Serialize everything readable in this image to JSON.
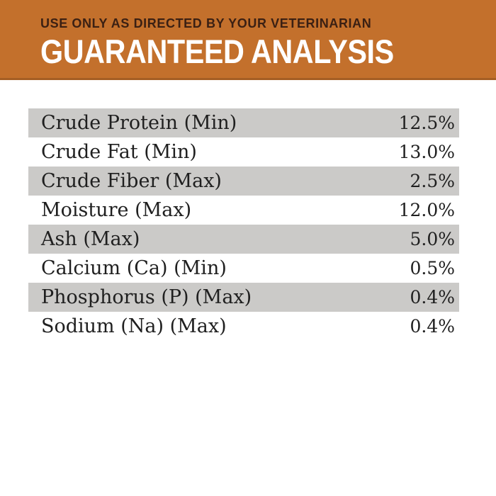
{
  "header": {
    "subtitle": "USE ONLY AS DIRECTED BY YOUR VETERINARIAN",
    "title": "GUARANTEED ANALYSIS",
    "background_color": "#C3702C",
    "subtitle_color": "#3B2013",
    "title_color": "#FFFFFF"
  },
  "table": {
    "stripe_color": "#CBCAC8",
    "text_color": "#1F1F1F",
    "rows": [
      {
        "label": "Crude Protein (Min)",
        "value": "12.5%"
      },
      {
        "label": "Crude Fat (Min)",
        "value": "13.0%"
      },
      {
        "label": "Crude Fiber (Max)",
        "value": "2.5%"
      },
      {
        "label": "Moisture (Max)",
        "value": "12.0%"
      },
      {
        "label": "Ash (Max)",
        "value": "5.0%"
      },
      {
        "label": "Calcium (Ca) (Min)",
        "value": "0.5%"
      },
      {
        "label": "Phosphorus (P) (Max)",
        "value": "0.4%"
      },
      {
        "label": "Sodium (Na) (Max)",
        "value": "0.4%"
      }
    ]
  }
}
